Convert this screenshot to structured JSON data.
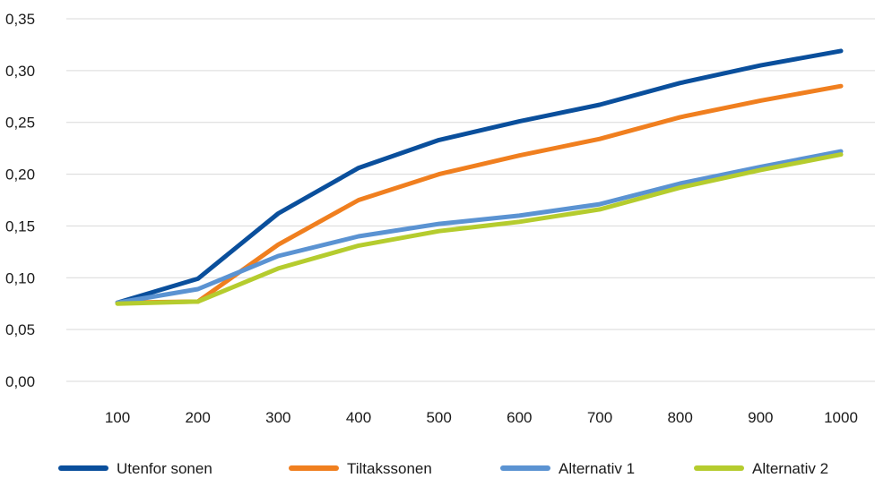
{
  "chart_data": {
    "type": "line",
    "title": "",
    "xlabel": "",
    "ylabel": "",
    "x": [
      "100",
      "200",
      "300",
      "400",
      "500",
      "600",
      "700",
      "800",
      "900",
      "1000"
    ],
    "ylim": [
      0,
      0.35
    ],
    "yticks": [
      "0,00",
      "0,05",
      "0,10",
      "0,15",
      "0,20",
      "0,25",
      "0,30",
      "0,35"
    ],
    "grid": "horizontal",
    "legend_position": "bottom",
    "series": [
      {
        "name": "Utenfor sonen",
        "color": "#0a4f9c",
        "values": [
          0.076,
          0.099,
          0.162,
          0.206,
          0.233,
          0.251,
          0.267,
          0.288,
          0.305,
          0.319
        ]
      },
      {
        "name": "Tiltakssonen",
        "color": "#f07f1f",
        "values": [
          0.076,
          0.077,
          0.132,
          0.175,
          0.2,
          0.218,
          0.234,
          0.255,
          0.271,
          0.285
        ]
      },
      {
        "name": "Alternativ 1",
        "color": "#5b93d2",
        "values": [
          0.076,
          0.089,
          0.121,
          0.14,
          0.152,
          0.16,
          0.171,
          0.191,
          0.207,
          0.222
        ]
      },
      {
        "name": "Alternativ 2",
        "color": "#b5cc2e",
        "values": [
          0.075,
          0.077,
          0.109,
          0.131,
          0.145,
          0.154,
          0.166,
          0.187,
          0.204,
          0.219
        ]
      }
    ]
  }
}
